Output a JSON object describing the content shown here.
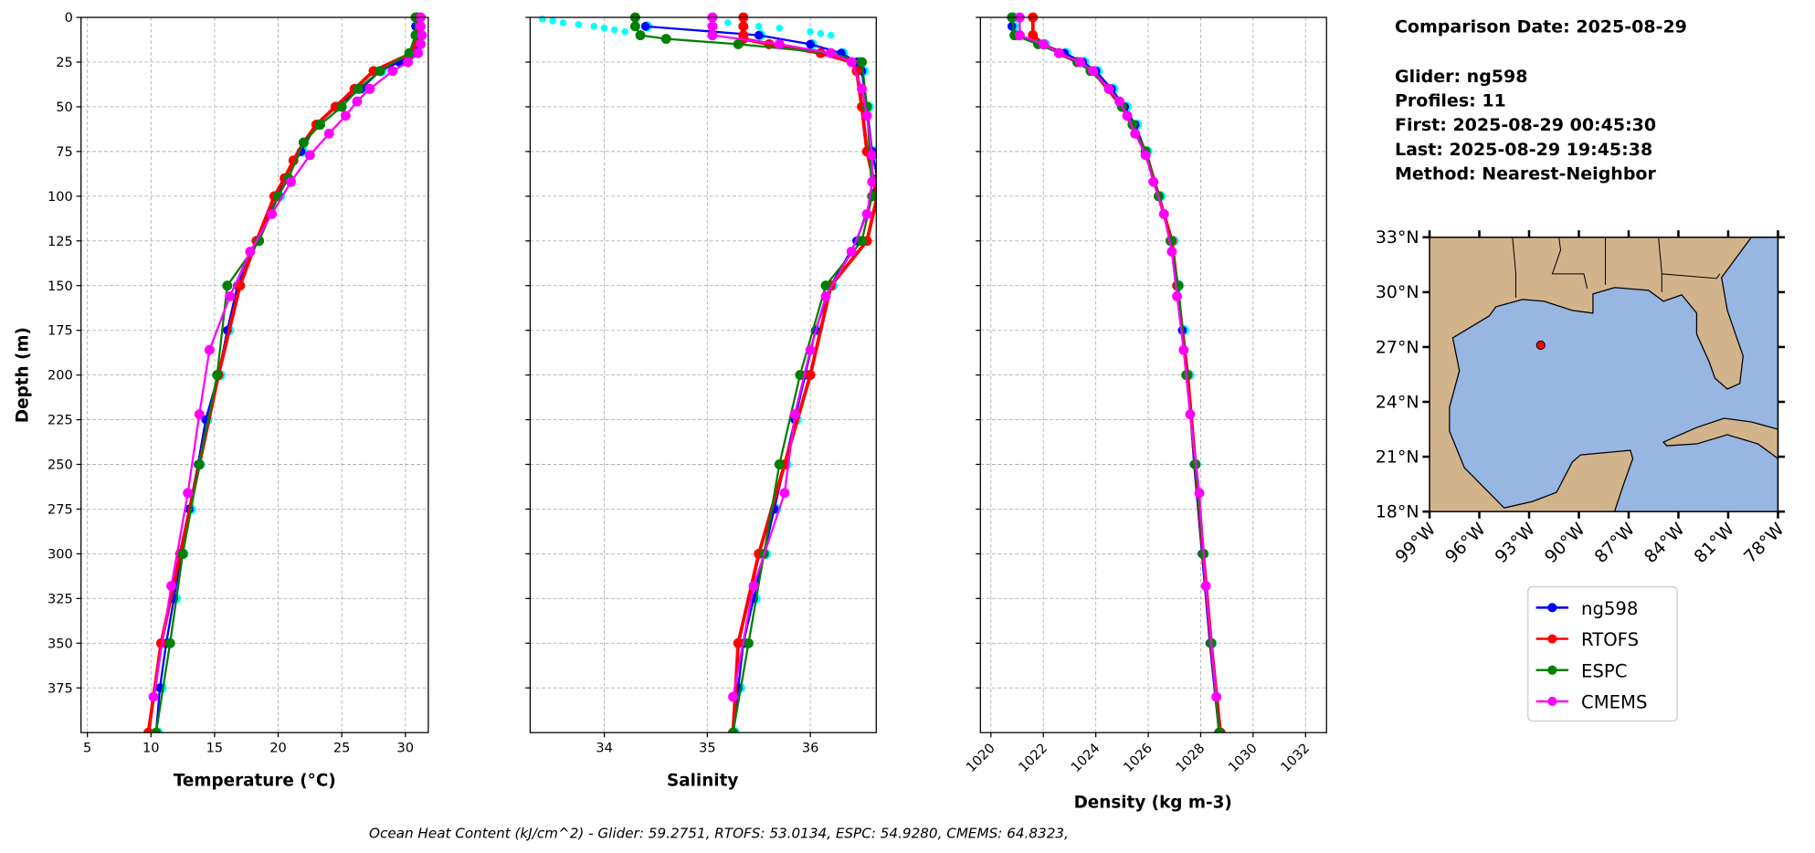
{
  "info": {
    "comparison_date": "Comparison Date: 2025-08-29",
    "glider": "Glider: ng598",
    "profiles": "Profiles: 11",
    "first": "First: 2025-08-29 00:45:30",
    "last": "Last: 2025-08-29 19:45:38",
    "method": "Method: Nearest-Neighbor"
  },
  "footer": "Ocean Heat Content (kJ/cm^2) - Glider: 59.2751,  RTOFS: 53.0134,  ESPC: 54.9280,  CMEMS: 64.8323,",
  "colors": {
    "ng598": "#0000ff",
    "RTOFS": "#ff0000",
    "ESPC": "#008000",
    "CMEMS": "#ff00ff",
    "profiles": "#00ffff",
    "land": "#d2b48c",
    "ocean": "#97b6e1"
  },
  "legend": [
    {
      "label": "ng598",
      "color": "#0000ff"
    },
    {
      "label": "RTOFS",
      "color": "#ff0000"
    },
    {
      "label": "ESPC",
      "color": "#008000"
    },
    {
      "label": "CMEMS",
      "color": "#ff00ff"
    }
  ],
  "chart_data": [
    {
      "type": "line",
      "xlabel": "Temperature (°C)",
      "ylabel": "Depth (m)",
      "xlim": [
        4.5,
        31.8
      ],
      "ylim": [
        400,
        0
      ],
      "y_inverted": true,
      "grid": true,
      "xticks": [
        "5",
        "10",
        "15",
        "20",
        "25",
        "30"
      ],
      "yticks": [
        "0",
        "25",
        "50",
        "75",
        "100",
        "125",
        "150",
        "175",
        "200",
        "225",
        "250",
        "275",
        "300",
        "325",
        "350",
        "375"
      ],
      "series": [
        {
          "name": "ng598",
          "depth": [
            0,
            5,
            10,
            15,
            20,
            25,
            30,
            40,
            50,
            60,
            75,
            90,
            100,
            125,
            150,
            175,
            200,
            225,
            250,
            275,
            300,
            325,
            350,
            375,
            400
          ],
          "values": [
            30.8,
            30.8,
            30.8,
            30.9,
            30.5,
            29.5,
            28.0,
            26.5,
            24.5,
            23.0,
            21.8,
            20.5,
            20.0,
            18.3,
            16.8,
            16.0,
            15.3,
            14.3,
            13.7,
            13.0,
            12.4,
            11.8,
            11.2,
            10.7,
            10.4
          ]
        },
        {
          "name": "RTOFS",
          "depth": [
            0,
            10,
            20,
            30,
            40,
            50,
            60,
            70,
            80,
            90,
            100,
            125,
            150,
            200,
            250,
            300,
            350,
            400
          ],
          "values": [
            31.0,
            31.0,
            30.5,
            27.5,
            26.0,
            24.5,
            23.0,
            22.0,
            21.2,
            20.5,
            19.7,
            18.3,
            17.0,
            15.3,
            13.8,
            12.3,
            10.8,
            9.8
          ]
        },
        {
          "name": "ESPC",
          "depth": [
            0,
            10,
            20,
            30,
            40,
            50,
            60,
            70,
            90,
            100,
            125,
            150,
            200,
            250,
            300,
            350,
            400
          ],
          "values": [
            30.8,
            30.8,
            30.3,
            28.0,
            26.3,
            25.0,
            23.3,
            22.0,
            20.8,
            20.0,
            18.5,
            16.0,
            15.2,
            13.8,
            12.5,
            11.5,
            10.4
          ]
        },
        {
          "name": "CMEMS",
          "depth": [
            0,
            5,
            10,
            15,
            20,
            25,
            30,
            40,
            47,
            55,
            65,
            77,
            92,
            110,
            131,
            156,
            186,
            222,
            266,
            318,
            380
          ],
          "values": [
            31.2,
            31.2,
            31.3,
            31.2,
            31.0,
            30.2,
            29.0,
            27.2,
            26.2,
            25.3,
            24.0,
            22.5,
            21.0,
            19.5,
            17.8,
            16.2,
            14.6,
            13.8,
            12.9,
            11.6,
            10.2
          ]
        }
      ]
    },
    {
      "type": "line",
      "xlabel": "Salinity",
      "xlim": [
        33.28,
        36.64
      ],
      "ylim": [
        400,
        0
      ],
      "y_inverted": true,
      "grid": true,
      "xticks": [
        "34",
        "35",
        "36"
      ],
      "series": [
        {
          "depth": [
            1,
            2,
            3,
            4,
            5,
            6,
            7,
            8,
            3,
            5,
            6,
            8,
            9,
            10
          ],
          "values": [
            33.4,
            33.5,
            33.6,
            33.75,
            33.9,
            34.0,
            34.1,
            34.2,
            35.2,
            35.5,
            35.7,
            36.0,
            36.1,
            36.2
          ]
        },
        {
          "name": "ng598",
          "depth": [
            5,
            10,
            15,
            20,
            25,
            30,
            50,
            75,
            90,
            100,
            125,
            150,
            175,
            200,
            225,
            250,
            275,
            300,
            325,
            350,
            375,
            400
          ],
          "values": [
            34.4,
            35.5,
            36.0,
            36.3,
            36.45,
            36.5,
            36.55,
            36.6,
            36.65,
            36.6,
            36.45,
            36.2,
            36.05,
            35.95,
            35.85,
            35.75,
            35.65,
            35.55,
            35.45,
            35.35,
            35.3,
            35.25
          ]
        },
        {
          "name": "RTOFS",
          "depth": [
            0,
            5,
            10,
            12,
            15,
            20,
            25,
            30,
            50,
            75,
            100,
            125,
            150,
            200,
            250,
            300,
            350,
            400
          ],
          "values": [
            35.35,
            35.35,
            35.35,
            35.35,
            35.6,
            36.1,
            36.4,
            36.45,
            36.5,
            36.55,
            36.65,
            36.55,
            36.2,
            36.0,
            35.75,
            35.5,
            35.3,
            35.25
          ]
        },
        {
          "name": "ESPC",
          "depth": [
            0,
            5,
            10,
            12,
            15,
            20,
            25,
            50,
            100,
            125,
            150,
            200,
            250,
            300,
            350,
            400
          ],
          "values": [
            34.3,
            34.3,
            34.35,
            34.6,
            35.3,
            36.2,
            36.5,
            36.55,
            36.6,
            36.5,
            36.15,
            35.9,
            35.7,
            35.55,
            35.4,
            35.25
          ]
        },
        {
          "name": "CMEMS",
          "depth": [
            0,
            5,
            10,
            15,
            20,
            25,
            40,
            55,
            77,
            92,
            110,
            131,
            156,
            186,
            222,
            266,
            318,
            380
          ],
          "values": [
            35.05,
            35.05,
            35.05,
            35.7,
            36.2,
            36.4,
            36.5,
            36.55,
            36.6,
            36.6,
            36.55,
            36.4,
            36.15,
            36.0,
            35.85,
            35.75,
            35.45,
            35.25
          ]
        }
      ]
    },
    {
      "type": "line",
      "xlabel": "Density (kg m-3)",
      "xlim": [
        1019.6,
        1032.8
      ],
      "ylim": [
        400,
        0
      ],
      "y_inverted": true,
      "grid": true,
      "xticks": [
        "1020",
        "1022",
        "1024",
        "1026",
        "1028",
        "1030",
        "1032"
      ],
      "series": [
        {
          "name": "ng598",
          "depth": [
            0,
            5,
            10,
            15,
            20,
            25,
            30,
            40,
            50,
            60,
            75,
            100,
            125,
            150,
            175,
            200,
            250,
            300,
            350,
            400
          ],
          "values": [
            1020.8,
            1020.8,
            1021.0,
            1022.0,
            1022.8,
            1023.5,
            1024.0,
            1024.6,
            1025.1,
            1025.5,
            1025.9,
            1026.4,
            1026.9,
            1027.1,
            1027.3,
            1027.5,
            1027.75,
            1028.05,
            1028.35,
            1028.7
          ]
        },
        {
          "name": "RTOFS",
          "depth": [
            0,
            10,
            15,
            20,
            25,
            30,
            50,
            75,
            100,
            125,
            150,
            200,
            250,
            300,
            350,
            400
          ],
          "values": [
            1021.6,
            1021.6,
            1022.0,
            1022.6,
            1023.3,
            1023.9,
            1025.0,
            1025.9,
            1026.4,
            1026.9,
            1027.1,
            1027.5,
            1027.8,
            1028.1,
            1028.4,
            1028.75
          ]
        },
        {
          "name": "ESPC",
          "depth": [
            0,
            10,
            15,
            20,
            25,
            30,
            40,
            50,
            60,
            75,
            100,
            125,
            150,
            200,
            250,
            300,
            350,
            400
          ],
          "values": [
            1020.8,
            1020.9,
            1021.8,
            1022.6,
            1023.3,
            1023.8,
            1024.5,
            1025.0,
            1025.4,
            1025.9,
            1026.4,
            1026.85,
            1027.15,
            1027.45,
            1027.8,
            1028.1,
            1028.4,
            1028.7
          ]
        },
        {
          "name": "CMEMS",
          "depth": [
            0,
            10,
            15,
            20,
            25,
            30,
            40,
            47,
            55,
            65,
            77,
            92,
            110,
            131,
            156,
            186,
            222,
            266,
            318,
            380
          ],
          "values": [
            1021.1,
            1021.1,
            1022.0,
            1022.6,
            1023.4,
            1023.9,
            1024.5,
            1024.9,
            1025.2,
            1025.5,
            1025.9,
            1026.2,
            1026.6,
            1026.9,
            1027.1,
            1027.35,
            1027.6,
            1027.95,
            1028.2,
            1028.6
          ]
        }
      ]
    }
  ],
  "map": {
    "lon_range": [
      -99,
      -78
    ],
    "lat_range": [
      18,
      33
    ],
    "lat_ticks": [
      "18°N",
      "21°N",
      "24°N",
      "27°N",
      "30°N",
      "33°N"
    ],
    "lon_ticks": [
      "99°W",
      "96°W",
      "93°W",
      "90°W",
      "87°W",
      "84°W",
      "81°W",
      "78°W"
    ],
    "glider_position": {
      "lon": -92.3,
      "lat": 27.1
    }
  }
}
